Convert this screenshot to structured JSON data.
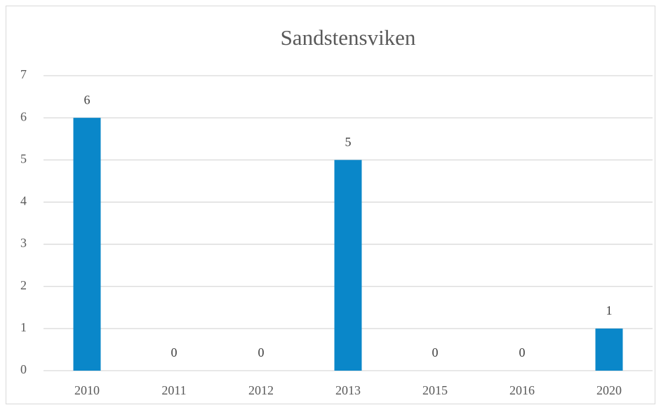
{
  "chart_data": {
    "type": "bar",
    "title": "Sandstensviken",
    "categories": [
      "2010",
      "2011",
      "2012",
      "2013",
      "2015",
      "2016",
      "2020"
    ],
    "values": [
      6,
      0,
      0,
      5,
      0,
      0,
      1
    ],
    "color": "#0a87c9",
    "ylim": [
      0,
      7
    ],
    "yticks": [
      0,
      1,
      2,
      3,
      4,
      5,
      6,
      7
    ],
    "grid": true,
    "data_labels": true
  }
}
